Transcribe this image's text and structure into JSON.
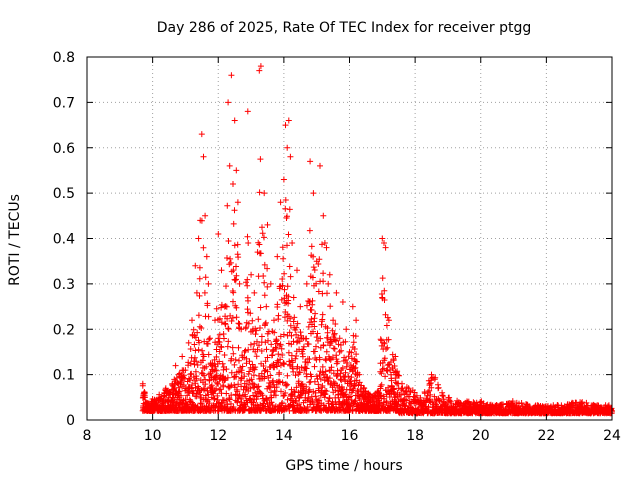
{
  "chart_data": {
    "type": "scatter",
    "title": "Day 286 of 2025, Rate Of TEC Index for receiver ptgg",
    "xlabel": "GPS time / hours",
    "ylabel": "ROTI / TECUs",
    "xlim": [
      8,
      24
    ],
    "ylim": [
      0,
      0.8
    ],
    "xticks": [
      "8",
      "10",
      "12",
      "14",
      "16",
      "18",
      "20",
      "22",
      "24"
    ],
    "yticks": [
      "0",
      "0.1",
      "0.2",
      "0.3",
      "0.4",
      "0.5",
      "0.6",
      "0.7",
      "0.8"
    ],
    "grid": true,
    "marker": "+",
    "color": "#ff0000",
    "series": [
      {
        "name": "ROTI",
        "note": "representative sample of dense plotted points",
        "x": [
          9.7,
          9.75,
          9.8,
          9.9,
          10.0,
          10.1,
          10.2,
          10.3,
          10.4,
          10.5,
          10.6,
          10.7,
          10.8,
          10.9,
          11.0,
          11.1,
          11.2,
          11.3,
          11.35,
          11.4,
          11.45,
          11.5,
          11.55,
          11.6,
          11.65,
          11.7,
          11.75,
          11.8,
          11.9,
          12.0,
          12.1,
          12.2,
          12.3,
          12.35,
          12.4,
          12.45,
          12.5,
          12.55,
          12.6,
          12.65,
          12.7,
          12.8,
          12.9,
          13.0,
          13.1,
          13.2,
          13.25,
          13.3,
          13.4,
          13.5,
          13.6,
          13.7,
          13.8,
          13.9,
          14.0,
          14.05,
          14.1,
          14.15,
          14.2,
          14.25,
          14.3,
          14.4,
          14.5,
          14.6,
          14.7,
          14.8,
          14.9,
          15.0,
          15.1,
          15.2,
          15.25,
          15.3,
          15.35,
          15.4,
          15.5,
          15.6,
          15.7,
          15.8,
          15.9,
          16.0,
          16.1,
          16.2,
          16.3,
          16.5,
          16.7,
          16.9,
          17.0,
          17.05,
          17.1,
          17.2,
          17.4,
          17.6,
          17.8,
          18.0,
          18.2,
          18.5,
          18.6,
          18.7,
          19.0,
          19.5,
          20.0,
          20.5,
          21.0,
          21.5,
          22.0,
          22.5,
          23.0,
          23.5,
          24.0
        ],
        "y": [
          0.08,
          0.06,
          0.03,
          0.02,
          0.04,
          0.03,
          0.05,
          0.04,
          0.07,
          0.06,
          0.08,
          0.12,
          0.1,
          0.14,
          0.11,
          0.17,
          0.22,
          0.34,
          0.28,
          0.4,
          0.44,
          0.63,
          0.58,
          0.45,
          0.36,
          0.3,
          0.18,
          0.12,
          0.22,
          0.41,
          0.33,
          0.25,
          0.7,
          0.56,
          0.76,
          0.52,
          0.66,
          0.55,
          0.48,
          0.3,
          0.2,
          0.15,
          0.68,
          0.32,
          0.28,
          0.37,
          0.77,
          0.78,
          0.5,
          0.43,
          0.3,
          0.22,
          0.36,
          0.48,
          0.53,
          0.65,
          0.6,
          0.66,
          0.58,
          0.39,
          0.27,
          0.33,
          0.25,
          0.18,
          0.3,
          0.57,
          0.5,
          0.35,
          0.56,
          0.45,
          0.39,
          0.38,
          0.3,
          0.32,
          0.22,
          0.28,
          0.18,
          0.26,
          0.2,
          0.15,
          0.25,
          0.22,
          0.1,
          0.06,
          0.05,
          0.06,
          0.4,
          0.39,
          0.38,
          0.22,
          0.14,
          0.08,
          0.07,
          0.05,
          0.04,
          0.1,
          0.09,
          0.07,
          0.04,
          0.03,
          0.03,
          0.02,
          0.03,
          0.02,
          0.02,
          0.02,
          0.03,
          0.02,
          0.02
        ]
      }
    ]
  }
}
